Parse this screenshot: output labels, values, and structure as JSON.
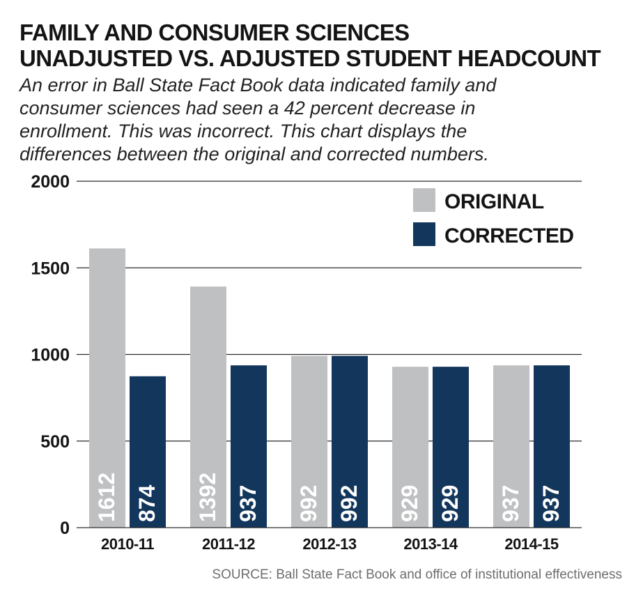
{
  "chart_data": {
    "type": "bar",
    "title": "FAMILY AND CONSUMER SCIENCES UNADJUSTED VS. ADJUSTED STUDENT HEADCOUNT",
    "title_lines": [
      "FAMILY AND CONSUMER SCIENCES",
      "UNADJUSTED VS. ADJUSTED STUDENT HEADCOUNT"
    ],
    "subtitle": "An error in Ball State Fact Book data indicated family and consumer sciences had seen a 42 percent decrease in enrollment. This was incorrect. This chart displays the differences between the original and corrected numbers.",
    "subtitle_lines": [
      "An error in Ball State Fact Book data indicated family and",
      "consumer sciences had seen a 42 percent decrease in",
      "enrollment. This was incorrect. This chart displays the",
      "differences between the original and corrected numbers."
    ],
    "categories": [
      "2010-11",
      "2011-12",
      "2012-13",
      "2013-14",
      "2014-15"
    ],
    "series": [
      {
        "name": "ORIGINAL",
        "color": "#bfc0c2",
        "label_color": "#ffffff",
        "values": [
          1612,
          1392,
          992,
          929,
          937
        ]
      },
      {
        "name": "CORRECTED",
        "color": "#12365c",
        "label_color": "#ffffff",
        "values": [
          874,
          937,
          992,
          929,
          937
        ]
      }
    ],
    "xlabel": "",
    "ylabel": "",
    "ylim": [
      0,
      2000
    ],
    "yticks": [
      0,
      500,
      1000,
      1500,
      2000
    ],
    "grid": true,
    "legend_position": "top-right",
    "data_labels": "inside-bottom-rotated"
  },
  "source": "SOURCE: Ball State Fact Book and office of institutional effectiveness",
  "colors": {
    "gridline": "#2a2a2a",
    "text": "#141414"
  }
}
